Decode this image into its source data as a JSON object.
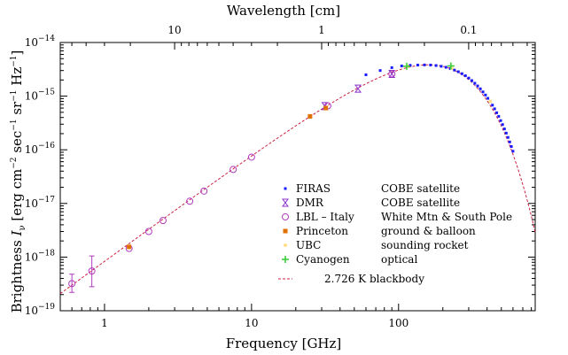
{
  "chart_data": {
    "type": "scatter",
    "title": "",
    "xlabel": "Frequency [GHz]",
    "top_xlabel": "Wavelength [cm]",
    "ylabel": {
      "prefix": "Brightness ",
      "symbol": "I",
      "subscript": "ν",
      "units_open": " [erg cm",
      "exp_cm": "−2",
      "sec": " sec",
      "exp_sec": "−1",
      "sr": " sr",
      "exp_sr": "−1",
      "hz": " Hz",
      "exp_hz": "−1",
      "units_close": "]"
    },
    "x_scale": "log",
    "y_scale": "log",
    "xlim": [
      0.5,
      850
    ],
    "ylim": [
      1e-19,
      1e-14
    ],
    "x_ticks": [
      {
        "value": 1,
        "label": "1"
      },
      {
        "value": 10,
        "label": "10"
      },
      {
        "value": 100,
        "label": "100"
      }
    ],
    "top_ticks": [
      {
        "value": 10,
        "label": "10"
      },
      {
        "value": 1,
        "label": "1"
      },
      {
        "value": 0.1,
        "label": "0.1"
      }
    ],
    "y_ticks": [
      {
        "value": 1e-19,
        "base": "10",
        "exp": "−19"
      },
      {
        "value": 1e-18,
        "base": "10",
        "exp": "−18"
      },
      {
        "value": 1e-17,
        "base": "10",
        "exp": "−17"
      },
      {
        "value": 1e-16,
        "base": "10",
        "exp": "−16"
      },
      {
        "value": 1e-15,
        "base": "10",
        "exp": "−15"
      },
      {
        "value": 1e-14,
        "base": "10",
        "exp": "−14"
      }
    ],
    "blackbody_temperature_K": 2.726,
    "legend_position": "lower-right",
    "series": [
      {
        "name": "FIRAS",
        "experiment": "COBE satellite",
        "marker": "square-dot",
        "color": "#1a1aff",
        "points": [
          [
            60,
            2.5e-15
          ],
          [
            75,
            3e-15
          ],
          [
            90,
            3.4e-15
          ],
          [
            105,
            3.65e-15
          ],
          [
            120,
            3.75e-15
          ],
          [
            135,
            3.8e-15
          ],
          [
            150,
            3.82e-15
          ],
          [
            165,
            3.8e-15
          ],
          [
            180,
            3.72e-15
          ],
          [
            195,
            3.6e-15
          ],
          [
            210,
            3.45e-15
          ],
          [
            225,
            3.27e-15
          ],
          [
            240,
            3.06e-15
          ],
          [
            255,
            2.85e-15
          ],
          [
            270,
            2.62e-15
          ],
          [
            285,
            2.4e-15
          ],
          [
            300,
            2.17e-15
          ],
          [
            315,
            1.95e-15
          ],
          [
            330,
            1.74e-15
          ],
          [
            345,
            1.55e-15
          ],
          [
            360,
            1.37e-15
          ],
          [
            375,
            1.2e-15
          ],
          [
            390,
            1.05e-15
          ],
          [
            405,
            9.1e-16
          ],
          [
            420,
            7.9e-16
          ],
          [
            435,
            6.8e-16
          ],
          [
            450,
            5.8e-16
          ],
          [
            465,
            4.9e-16
          ],
          [
            480,
            4.2e-16
          ],
          [
            495,
            3.5e-16
          ],
          [
            510,
            2.95e-16
          ],
          [
            525,
            2.45e-16
          ],
          [
            540,
            2.05e-16
          ],
          [
            555,
            1.7e-16
          ],
          [
            570,
            1.4e-16
          ],
          [
            585,
            1.15e-16
          ],
          [
            600,
            9.4e-17
          ]
        ]
      },
      {
        "name": "DMR",
        "experiment": "COBE satellite",
        "marker": "hourglass",
        "color": "#8b2fc9",
        "points": [
          [
            31.5,
            6.5e-16
          ],
          [
            53,
            1.38e-15
          ],
          [
            90,
            2.6e-15
          ]
        ]
      },
      {
        "name": "LBL – Italy",
        "experiment": "White Mtn & South Pole",
        "marker": "circle",
        "color": "#b03cc0",
        "points": [
          [
            0.6,
            3.2e-19
          ],
          [
            0.82,
            5.5e-19
          ],
          [
            1.47,
            1.45e-18
          ],
          [
            2.0,
            3e-18
          ],
          [
            2.5,
            4.8e-18
          ],
          [
            3.8,
            1.1e-17
          ],
          [
            4.75,
            1.7e-17
          ],
          [
            7.5,
            4.3e-17
          ],
          [
            10.0,
            7.3e-17
          ],
          [
            33,
            6.6e-16
          ],
          [
            90,
            2.6e-15
          ]
        ],
        "errors": [
          [
            0.6,
            2.2e-19,
            4.8e-19
          ],
          [
            0.82,
            2.8e-19,
            1.05e-18
          ]
        ]
      },
      {
        "name": "Princeton",
        "experiment": "ground & balloon",
        "marker": "square",
        "color": "#e07000",
        "points": [
          [
            1.47,
            1.55e-18
          ],
          [
            25,
            4.2e-16
          ],
          [
            32,
            6e-16
          ]
        ]
      },
      {
        "name": "UBC",
        "experiment": "sounding rocket",
        "marker": "dot",
        "color": "#ffe08a",
        "points": [
          [
            115,
            3.6e-15
          ],
          [
            230,
            3.3e-15
          ],
          [
            420,
            8e-16
          ]
        ]
      },
      {
        "name": "Cyanogen",
        "experiment": "optical",
        "marker": "plus",
        "color": "#33cc33",
        "points": [
          [
            113.6,
            3.6e-15
          ],
          [
            227,
            3.65e-15
          ]
        ]
      }
    ],
    "curve": {
      "name": "2.726 K blackbody",
      "style": "dashed",
      "color": "#cc2244"
    }
  }
}
